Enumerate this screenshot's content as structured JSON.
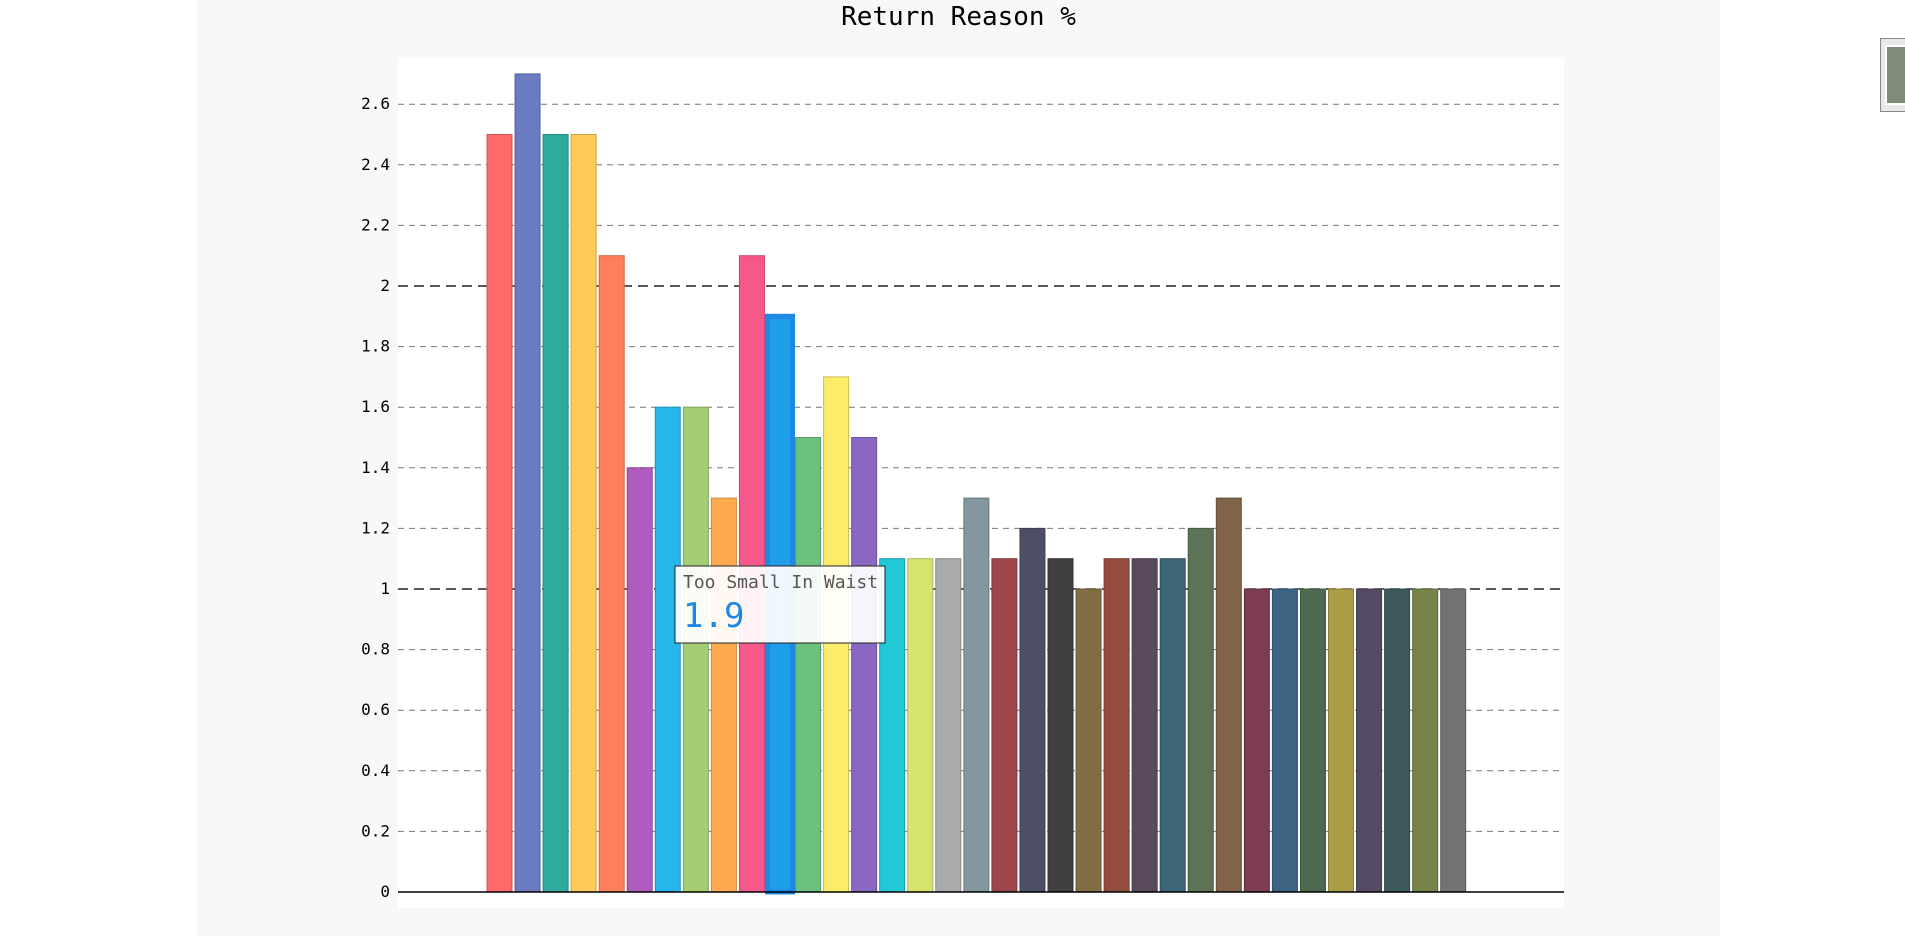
{
  "chart_data": {
    "type": "bar",
    "title": "Return Reason %",
    "xlabel": "",
    "ylabel": "",
    "ylim": [
      0,
      2.8
    ],
    "yticks": [
      "0",
      "0.2",
      "0.4",
      "0.6",
      "0.8",
      "1",
      "1.2",
      "1.4",
      "1.6",
      "1.8",
      "2",
      "2.2",
      "2.4",
      "2.6"
    ],
    "grid": true,
    "values": [
      2.5,
      2.7,
      2.5,
      2.5,
      2.1,
      1.4,
      1.6,
      1.6,
      1.3,
      2.1,
      1.9,
      1.5,
      1.7,
      1.5,
      1.1,
      1.1,
      1.1,
      1.3,
      1.1,
      1.2,
      1.1,
      1.0,
      1.1,
      1.1,
      1.1,
      1.2,
      1.3,
      1.0,
      1.0,
      1.0,
      1.0,
      1.0,
      1.0,
      1.0,
      1.0
    ],
    "colors": [
      "#ff6b6b",
      "#6b7bc2",
      "#2eaa9e",
      "#ffcb57",
      "#ff7f5a",
      "#b05cbf",
      "#27b5ea",
      "#a3ce73",
      "#ffaa4e",
      "#f6588a",
      "#1e9ee8",
      "#6bc17d",
      "#fdeb6a",
      "#8a67c2",
      "#21c8d6",
      "#d7e36f",
      "#aaaaaa",
      "#82979f",
      "#9d474a",
      "#4d4f66",
      "#404040",
      "#826e45",
      "#954c3e",
      "#5a4a5e",
      "#3d6777",
      "#5c7355",
      "#806349",
      "#7d3c53",
      "#3c6482",
      "#4f6a50",
      "#ab9c45",
      "#554a66",
      "#3d5a5b",
      "#778449",
      "#737373"
    ],
    "highlight_index": 10,
    "tooltip": {
      "label": "Too Small In Waist",
      "value": "1.9",
      "color": "#1e88e5"
    }
  }
}
